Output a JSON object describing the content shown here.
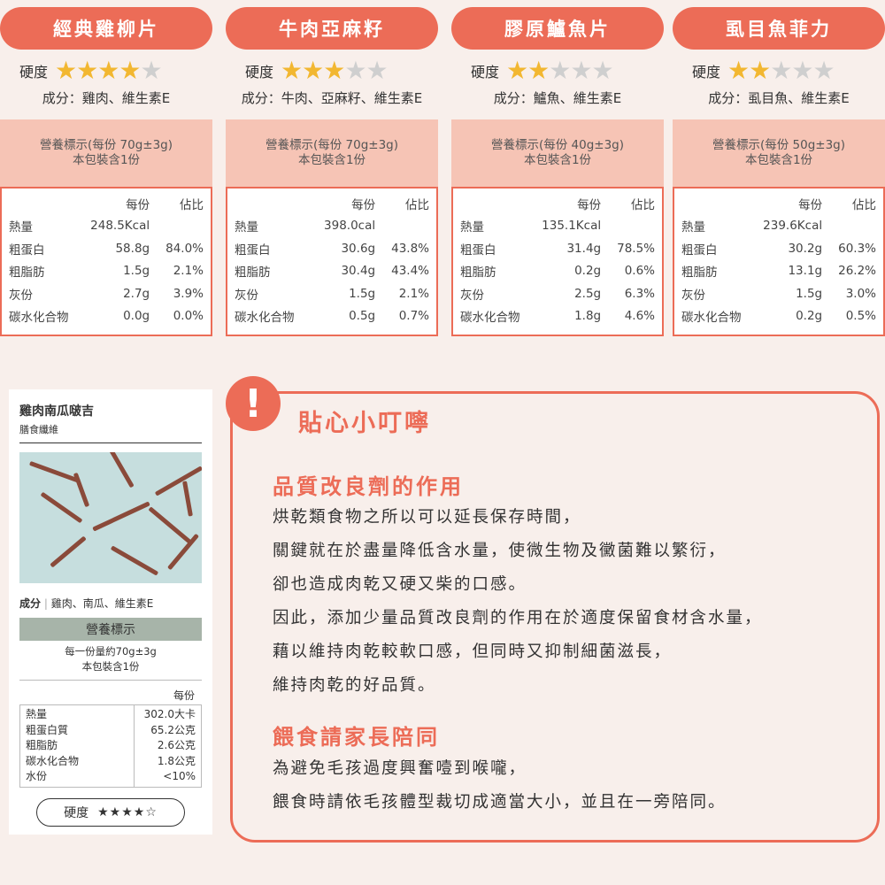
{
  "colors": {
    "accent": "#ec6c57",
    "background": "#f8efeb",
    "table_header": "#f6c4b5",
    "star_on": "#f2b731",
    "star_off": "#cfcfcf"
  },
  "hardness_label": "硬度",
  "table_cols": {
    "per": "每份",
    "pct": "佔比"
  },
  "products": [
    {
      "name": "經典雞柳片",
      "stars": 4,
      "ingredients": "成分：雞肉、維生素E",
      "serving": "營養標示(每份 70g±3g)",
      "pack": "本包裝含1份",
      "rows": [
        {
          "l": "熱量",
          "v": "248.5Kcal",
          "p": ""
        },
        {
          "l": "粗蛋白",
          "v": "58.8g",
          "p": "84.0%"
        },
        {
          "l": "粗脂肪",
          "v": "1.5g",
          "p": "2.1%"
        },
        {
          "l": "灰份",
          "v": "2.7g",
          "p": "3.9%"
        },
        {
          "l": "碳水化合物",
          "v": "0.0g",
          "p": "0.0%"
        }
      ]
    },
    {
      "name": "牛肉亞麻籽",
      "stars": 3,
      "ingredients": "成分：牛肉、亞麻籽、維生素E",
      "serving": "營養標示(每份 70g±3g)",
      "pack": "本包裝含1份",
      "rows": [
        {
          "l": "熱量",
          "v": "398.0cal",
          "p": ""
        },
        {
          "l": "粗蛋白",
          "v": "30.6g",
          "p": "43.8%"
        },
        {
          "l": "粗脂肪",
          "v": "30.4g",
          "p": "43.4%"
        },
        {
          "l": "灰份",
          "v": "1.5g",
          "p": "2.1%"
        },
        {
          "l": "碳水化合物",
          "v": "0.5g",
          "p": "0.7%"
        }
      ]
    },
    {
      "name": "膠原鱸魚片",
      "stars": 2,
      "ingredients": "成分：鱸魚、維生素E",
      "serving": "營養標示(每份 40g±3g)",
      "pack": "本包裝含1份",
      "rows": [
        {
          "l": "熱量",
          "v": "135.1Kcal",
          "p": ""
        },
        {
          "l": "粗蛋白",
          "v": "31.4g",
          "p": "78.5%"
        },
        {
          "l": "粗脂肪",
          "v": "0.2g",
          "p": "0.6%"
        },
        {
          "l": "灰份",
          "v": "2.5g",
          "p": "6.3%"
        },
        {
          "l": "碳水化合物",
          "v": "1.8g",
          "p": "4.6%"
        }
      ]
    },
    {
      "name": "虱目魚菲力",
      "stars": 2,
      "ingredients": "成分：虱目魚、維生素E",
      "serving": "營養標示(每份 50g±3g)",
      "pack": "本包裝含1份",
      "rows": [
        {
          "l": "熱量",
          "v": "239.6Kcal",
          "p": ""
        },
        {
          "l": "粗蛋白",
          "v": "30.2g",
          "p": "60.3%"
        },
        {
          "l": "粗脂肪",
          "v": "13.1g",
          "p": "26.2%"
        },
        {
          "l": "灰份",
          "v": "1.5g",
          "p": "3.0%"
        },
        {
          "l": "碳水化合物",
          "v": "0.2g",
          "p": "0.5%"
        }
      ]
    }
  ],
  "card": {
    "title": "雞肉南瓜啵吉",
    "subtitle": "膳食纖維",
    "ingredients_label": "成分",
    "ingredients": "雞肉、南瓜、維生素E",
    "nutrition_title": "營養標示",
    "serving": "每一份量約70g±3g",
    "pack": "本包裝含1份",
    "per": "每份",
    "rows": [
      {
        "l": "熱量",
        "v": "302.0大卡"
      },
      {
        "l": "粗蛋白質",
        "v": "65.2公克"
      },
      {
        "l": "粗脂肪",
        "v": "2.6公克"
      },
      {
        "l": "碳水化合物",
        "v": "1.8公克"
      },
      {
        "l": "水份",
        "v": "<10%"
      }
    ],
    "hardness_stars": 4,
    "stars_text": "★★★★☆"
  },
  "tips": {
    "icon": "!",
    "title": "貼心小叮嚀",
    "sections": [
      {
        "heading": "品質改良劑的作用",
        "lines": [
          "烘乾類食物之所以可以延長保存時間，",
          "關鍵就在於盡量降低含水量，使微生物及黴菌難以繁衍，",
          "卻也造成肉乾又硬又柴的口感。",
          "因此，添加少量品質改良劑的作用在於適度保留食材含水量，",
          "藉以維持肉乾較軟口感，但同時又抑制細菌滋長，",
          "維持肉乾的好品質。"
        ]
      },
      {
        "heading": "餵食請家長陪同",
        "lines": [
          "為避免毛孩過度興奮噎到喉嚨，",
          "餵食時請依毛孩體型裁切成適當大小，並且在一旁陪同。"
        ]
      }
    ]
  }
}
